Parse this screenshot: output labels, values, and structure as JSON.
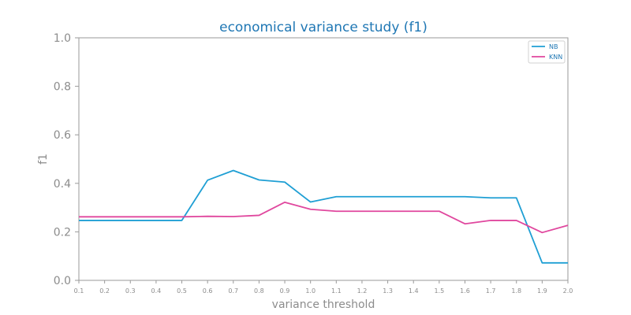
{
  "chart_data": {
    "type": "line",
    "title": "economical variance study (f1)",
    "xlabel": "variance threshold",
    "ylabel": "f1",
    "x": [
      0.1,
      0.2,
      0.3,
      0.4,
      0.5,
      0.6,
      0.7,
      0.8,
      0.9,
      1.0,
      1.1,
      1.2,
      1.3,
      1.4,
      1.5,
      1.6,
      1.7,
      1.8,
      1.9,
      2.0
    ],
    "x_tick_labels": [
      "0.1",
      "0.2",
      "0.3",
      "0.4",
      "0.5",
      "0.6",
      "0.7",
      "0.8",
      "0.9",
      "1.0",
      "1.1",
      "1.2",
      "1.3",
      "1.4",
      "1.5",
      "1.6",
      "1.7",
      "1.8",
      "1.9",
      "2.0"
    ],
    "y_tick_labels": [
      "0.0",
      "0.2",
      "0.4",
      "0.6",
      "0.8",
      "1.0"
    ],
    "y_ticks": [
      0.0,
      0.2,
      0.4,
      0.6,
      0.8,
      1.0
    ],
    "xlim": [
      0.1,
      2.0
    ],
    "ylim": [
      0.0,
      1.0
    ],
    "grid": false,
    "legend_position": "top-right",
    "series": [
      {
        "name": "NB",
        "color": "#1f9fd4",
        "values": [
          0.247,
          0.247,
          0.247,
          0.247,
          0.247,
          0.413,
          0.453,
          0.414,
          0.405,
          0.323,
          0.345,
          0.345,
          0.345,
          0.345,
          0.345,
          0.345,
          0.34,
          0.34,
          0.072,
          0.072
        ]
      },
      {
        "name": "KNN",
        "color": "#e0479e",
        "values": [
          0.262,
          0.262,
          0.262,
          0.262,
          0.262,
          0.264,
          0.263,
          0.268,
          0.322,
          0.293,
          0.285,
          0.285,
          0.285,
          0.285,
          0.285,
          0.233,
          0.247,
          0.247,
          0.197,
          0.227
        ]
      }
    ]
  }
}
